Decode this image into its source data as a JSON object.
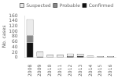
{
  "chart_data": {
    "type": "bar",
    "stacked": true,
    "categories": [
      "2008",
      "2009",
      "2010",
      "2011",
      "2012",
      "2013",
      "2014",
      "2015",
      "2016"
    ],
    "series": [
      {
        "name": "Confirmed",
        "color": "#111111",
        "values": [
          57,
          2,
          1,
          1,
          2,
          5,
          1,
          1,
          1
        ]
      },
      {
        "name": "Probable",
        "color": "#888888",
        "values": [
          27,
          2,
          1,
          1,
          3,
          1,
          1,
          1,
          1
        ]
      },
      {
        "name": "Suspected",
        "color": "#ebebeb",
        "values": [
          62,
          18,
          8,
          8,
          10,
          8,
          5,
          3,
          3
        ]
      }
    ],
    "ylabel": "No. cases",
    "ylim": [
      0,
      160
    ],
    "yticks": [
      0,
      20,
      40,
      60,
      80,
      100,
      120,
      140,
      160
    ],
    "legend": "upper right",
    "grid": false
  }
}
